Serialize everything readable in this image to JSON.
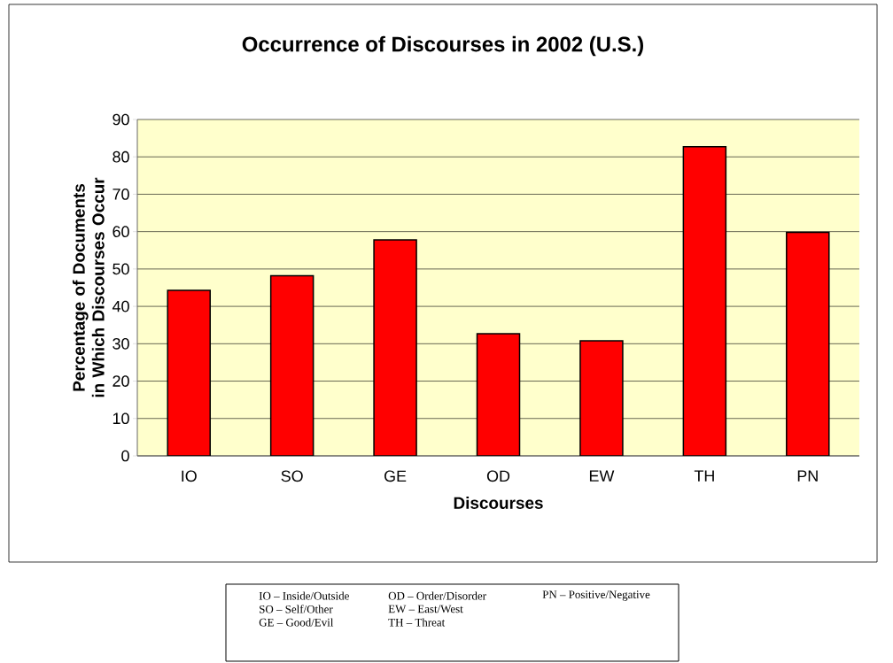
{
  "chart_data": {
    "type": "bar",
    "title": "Occurrence of Discourses in 2002 (U.S.)",
    "xlabel": "Discourses",
    "ylabel": "Percentage of Documents in Which Discourses Occur",
    "categories": [
      "IO",
      "SO",
      "GE",
      "OD",
      "EW",
      "TH",
      "PN"
    ],
    "values": [
      44.3,
      48.2,
      57.8,
      32.7,
      30.8,
      82.7,
      59.8
    ],
    "color": "#ff0000",
    "ylim": [
      0,
      90
    ],
    "yticks": [
      0,
      10,
      20,
      30,
      40,
      50,
      60,
      70,
      80,
      90
    ],
    "grid": "y",
    "annotations": [
      "IO – Inside/Outside",
      "SO – Self/Other",
      "GE – Good/Evil",
      "OD – Order/Disorder",
      "EW – East/West",
      "TH – Threat",
      "PN – Positive/Negative"
    ]
  }
}
